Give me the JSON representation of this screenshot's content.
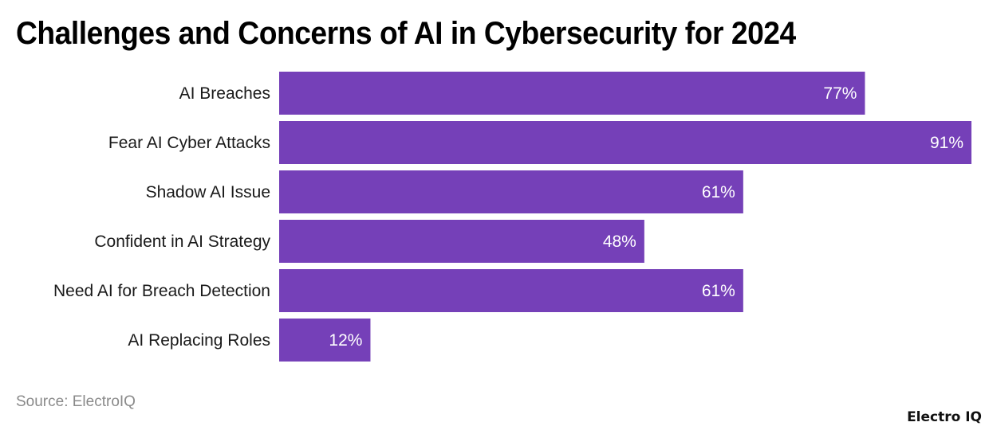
{
  "chart_data": {
    "type": "bar",
    "orientation": "horizontal",
    "title": "Challenges and Concerns of AI in Cybersecurity for 2024",
    "categories": [
      "AI Breaches",
      "Fear AI Cyber Attacks",
      "Shadow AI Issue",
      "Confident in AI Strategy",
      "Need AI for Breach Detection",
      "AI Replacing Roles"
    ],
    "values": [
      77,
      91,
      61,
      48,
      61,
      12
    ],
    "labels": [
      "77%",
      "91%",
      "61%",
      "48%",
      "61%",
      "12%"
    ],
    "unit": "%",
    "xlim": [
      0,
      91
    ],
    "grid": false,
    "bar_color": "#7540B8"
  },
  "source": "Source: ElectroIQ",
  "brand": "Electro IQ"
}
